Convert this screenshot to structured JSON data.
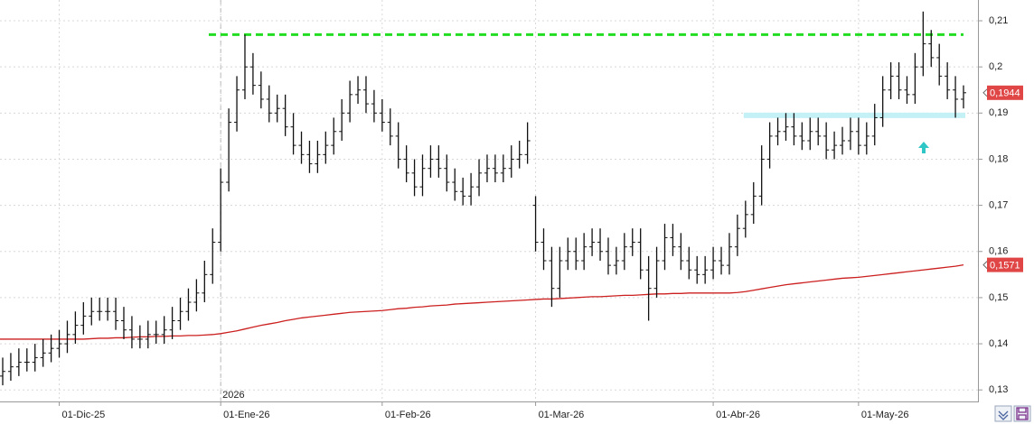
{
  "chart_data": {
    "type": "ohlc",
    "categories": [
      null,
      null,
      null,
      null,
      null,
      null,
      null,
      "01-Dic-25",
      null,
      null,
      null,
      null,
      null,
      null,
      null,
      null,
      null,
      null,
      null,
      null,
      null,
      null,
      null,
      null,
      null,
      null,
      null,
      "01-Ene-26",
      null,
      null,
      null,
      null,
      null,
      null,
      null,
      null,
      null,
      null,
      null,
      null,
      null,
      null,
      null,
      null,
      null,
      null,
      null,
      "01-Feb-26",
      null,
      null,
      null,
      null,
      null,
      null,
      null,
      null,
      null,
      null,
      null,
      null,
      null,
      null,
      null,
      null,
      null,
      null,
      "01-Mar-26",
      null,
      null,
      null,
      null,
      null,
      null,
      null,
      null,
      null,
      null,
      null,
      null,
      null,
      null,
      null,
      null,
      null,
      null,
      null,
      null,
      null,
      "01-Abr-26",
      null,
      null,
      null,
      null,
      null,
      null,
      null,
      null,
      null,
      null,
      null,
      null,
      null,
      null,
      null,
      null,
      null,
      "01-May-26",
      null,
      null,
      null,
      null,
      null,
      null,
      null,
      null,
      null,
      null,
      null,
      null,
      null
    ],
    "year_label": "2026",
    "bar_color": "#111111",
    "open": [
      0.133,
      0.134,
      0.135,
      0.136,
      0.136,
      0.137,
      0.138,
      0.139,
      0.14,
      0.142,
      0.144,
      0.146,
      0.147,
      0.147,
      0.147,
      0.145,
      0.143,
      0.141,
      0.141,
      0.142,
      0.142,
      0.143,
      0.145,
      0.147,
      0.149,
      0.151,
      0.155,
      0.162,
      0.175,
      0.188,
      0.195,
      0.2,
      0.196,
      0.193,
      0.19,
      0.191,
      0.187,
      0.183,
      0.181,
      0.179,
      0.181,
      0.183,
      0.186,
      0.19,
      0.194,
      0.195,
      0.192,
      0.19,
      0.188,
      0.185,
      0.18,
      0.177,
      0.174,
      0.178,
      0.18,
      0.178,
      0.175,
      0.173,
      0.172,
      0.174,
      0.177,
      0.178,
      0.177,
      0.178,
      0.18,
      0.181,
      0.17,
      0.162,
      0.158,
      0.152,
      0.158,
      0.16,
      0.158,
      0.161,
      0.162,
      0.16,
      0.157,
      0.158,
      0.161,
      0.162,
      0.156,
      0.152,
      0.158,
      0.163,
      0.161,
      0.158,
      0.156,
      0.155,
      0.156,
      0.158,
      0.157,
      0.161,
      0.165,
      0.168,
      0.172,
      0.18,
      0.185,
      0.186,
      0.187,
      0.185,
      0.184,
      0.186,
      0.185,
      0.182,
      0.183,
      0.184,
      0.186,
      0.183,
      0.185,
      0.189,
      0.195,
      0.198,
      0.195,
      0.194,
      0.2,
      0.205,
      0.202,
      0.198,
      0.195,
      0.193
    ],
    "high": [
      0.137,
      0.138,
      0.139,
      0.139,
      0.14,
      0.141,
      0.142,
      0.143,
      0.145,
      0.147,
      0.149,
      0.15,
      0.15,
      0.15,
      0.15,
      0.148,
      0.146,
      0.144,
      0.145,
      0.145,
      0.146,
      0.148,
      0.15,
      0.152,
      0.154,
      0.158,
      0.165,
      0.178,
      0.191,
      0.198,
      0.207,
      0.203,
      0.199,
      0.196,
      0.194,
      0.194,
      0.19,
      0.186,
      0.184,
      0.184,
      0.186,
      0.189,
      0.193,
      0.197,
      0.198,
      0.198,
      0.195,
      0.193,
      0.191,
      0.188,
      0.183,
      0.18,
      0.181,
      0.183,
      0.183,
      0.181,
      0.178,
      0.176,
      0.177,
      0.18,
      0.181,
      0.181,
      0.181,
      0.183,
      0.184,
      0.188,
      0.172,
      0.165,
      0.161,
      0.161,
      0.163,
      0.163,
      0.164,
      0.165,
      0.165,
      0.163,
      0.161,
      0.164,
      0.165,
      0.165,
      0.159,
      0.161,
      0.166,
      0.166,
      0.164,
      0.161,
      0.159,
      0.159,
      0.161,
      0.161,
      0.164,
      0.168,
      0.171,
      0.175,
      0.183,
      0.188,
      0.189,
      0.19,
      0.19,
      0.188,
      0.189,
      0.189,
      0.188,
      0.186,
      0.187,
      0.189,
      0.189,
      0.188,
      0.192,
      0.198,
      0.201,
      0.201,
      0.198,
      0.203,
      0.212,
      0.208,
      0.205,
      0.201,
      0.198,
      0.196
    ],
    "low": [
      0.131,
      0.132,
      0.133,
      0.134,
      0.134,
      0.135,
      0.136,
      0.137,
      0.138,
      0.14,
      0.142,
      0.144,
      0.145,
      0.145,
      0.143,
      0.141,
      0.139,
      0.139,
      0.139,
      0.14,
      0.14,
      0.141,
      0.143,
      0.145,
      0.147,
      0.149,
      0.153,
      0.16,
      0.173,
      0.186,
      0.193,
      0.194,
      0.191,
      0.188,
      0.188,
      0.185,
      0.181,
      0.179,
      0.177,
      0.177,
      0.179,
      0.181,
      0.184,
      0.188,
      0.192,
      0.19,
      0.188,
      0.186,
      0.183,
      0.178,
      0.175,
      0.172,
      0.172,
      0.176,
      0.176,
      0.173,
      0.171,
      0.17,
      0.17,
      0.172,
      0.175,
      0.175,
      0.175,
      0.176,
      0.178,
      0.179,
      0.16,
      0.156,
      0.148,
      0.15,
      0.156,
      0.156,
      0.156,
      0.159,
      0.158,
      0.155,
      0.155,
      0.156,
      0.159,
      0.154,
      0.145,
      0.15,
      0.156,
      0.159,
      0.156,
      0.154,
      0.153,
      0.153,
      0.154,
      0.155,
      0.155,
      0.159,
      0.163,
      0.166,
      0.17,
      0.178,
      0.183,
      0.184,
      0.183,
      0.182,
      0.182,
      0.183,
      0.18,
      0.18,
      0.181,
      0.182,
      0.181,
      0.181,
      0.183,
      0.187,
      0.193,
      0.193,
      0.192,
      0.192,
      0.198,
      0.2,
      0.196,
      0.193,
      0.189,
      0.191
    ],
    "close": [
      0.134,
      0.135,
      0.136,
      0.136,
      0.137,
      0.138,
      0.139,
      0.14,
      0.142,
      0.144,
      0.146,
      0.147,
      0.147,
      0.147,
      0.145,
      0.143,
      0.141,
      0.141,
      0.142,
      0.142,
      0.143,
      0.145,
      0.147,
      0.149,
      0.151,
      0.155,
      0.162,
      0.175,
      0.188,
      0.195,
      0.2,
      0.196,
      0.193,
      0.19,
      0.191,
      0.187,
      0.183,
      0.181,
      0.179,
      0.181,
      0.183,
      0.186,
      0.19,
      0.194,
      0.195,
      0.192,
      0.19,
      0.188,
      0.185,
      0.18,
      0.177,
      0.174,
      0.178,
      0.18,
      0.178,
      0.175,
      0.173,
      0.172,
      0.174,
      0.177,
      0.178,
      0.177,
      0.178,
      0.18,
      0.181,
      0.184,
      0.162,
      0.158,
      0.152,
      0.158,
      0.16,
      0.158,
      0.161,
      0.162,
      0.16,
      0.157,
      0.158,
      0.161,
      0.162,
      0.156,
      0.152,
      0.158,
      0.163,
      0.161,
      0.158,
      0.156,
      0.155,
      0.156,
      0.158,
      0.157,
      0.161,
      0.165,
      0.168,
      0.172,
      0.18,
      0.185,
      0.186,
      0.187,
      0.185,
      0.184,
      0.186,
      0.185,
      0.182,
      0.183,
      0.184,
      0.186,
      0.183,
      0.185,
      0.189,
      0.195,
      0.198,
      0.195,
      0.194,
      0.2,
      0.205,
      0.202,
      0.198,
      0.195,
      0.193,
      0.1944
    ],
    "ma": {
      "color": "#cc1f1f",
      "values": [
        0.141,
        0.141,
        0.141,
        0.141,
        0.141,
        0.141,
        0.141,
        0.141,
        0.141,
        0.141,
        0.141,
        0.1411,
        0.1412,
        0.1412,
        0.1413,
        0.1413,
        0.1414,
        0.1415,
        0.1415,
        0.1416,
        0.1416,
        0.1417,
        0.1417,
        0.1418,
        0.1418,
        0.1419,
        0.142,
        0.1422,
        0.1425,
        0.1428,
        0.1432,
        0.1436,
        0.144,
        0.1443,
        0.1446,
        0.145,
        0.1453,
        0.1456,
        0.1458,
        0.146,
        0.1462,
        0.1464,
        0.1466,
        0.1468,
        0.1469,
        0.147,
        0.1471,
        0.1472,
        0.1474,
        0.1476,
        0.1477,
        0.1479,
        0.148,
        0.1482,
        0.1483,
        0.1484,
        0.1486,
        0.1487,
        0.1488,
        0.1489,
        0.149,
        0.1491,
        0.1492,
        0.1493,
        0.1494,
        0.1495,
        0.1496,
        0.1497,
        0.1497,
        0.1498,
        0.1499,
        0.15,
        0.1501,
        0.1502,
        0.1502,
        0.1503,
        0.1504,
        0.1505,
        0.1505,
        0.1506,
        0.1507,
        0.1508,
        0.1508,
        0.1509,
        0.1509,
        0.151,
        0.151,
        0.151,
        0.151,
        0.151,
        0.151,
        0.1511,
        0.1513,
        0.1516,
        0.1519,
        0.1522,
        0.1525,
        0.1528,
        0.153,
        0.1532,
        0.1534,
        0.1536,
        0.1538,
        0.154,
        0.1542,
        0.1543,
        0.1544,
        0.1546,
        0.1548,
        0.155,
        0.1552,
        0.1554,
        0.1556,
        0.1558,
        0.156,
        0.1562,
        0.1564,
        0.1566,
        0.1568,
        0.1571
      ]
    },
    "last_price": {
      "value": 0.1944,
      "label": "0,1944",
      "color": "#e04646"
    },
    "ma_price": {
      "value": 0.1571,
      "label": "0,1571",
      "color": "#e04646"
    },
    "levels": [
      {
        "value": 0.207,
        "color": "#22dd22",
        "from": 30
      },
      {
        "value": 0.1895,
        "color": "#c4f1f6",
        "from": 92
      }
    ],
    "ylim": [
      0.1275,
      0.2145
    ],
    "yticks": [
      {
        "value": 0.13,
        "label": "0,13"
      },
      {
        "value": 0.14,
        "label": "0,14"
      },
      {
        "value": 0.15,
        "label": "0,15"
      },
      {
        "value": 0.16,
        "label": "0,16"
      },
      {
        "value": 0.17,
        "label": "0,17"
      },
      {
        "value": 0.18,
        "label": "0,18"
      },
      {
        "value": 0.19,
        "label": "0,19"
      },
      {
        "value": 0.2,
        "label": "0,2"
      },
      {
        "value": 0.21,
        "label": "0,21"
      }
    ],
    "grid": true
  }
}
